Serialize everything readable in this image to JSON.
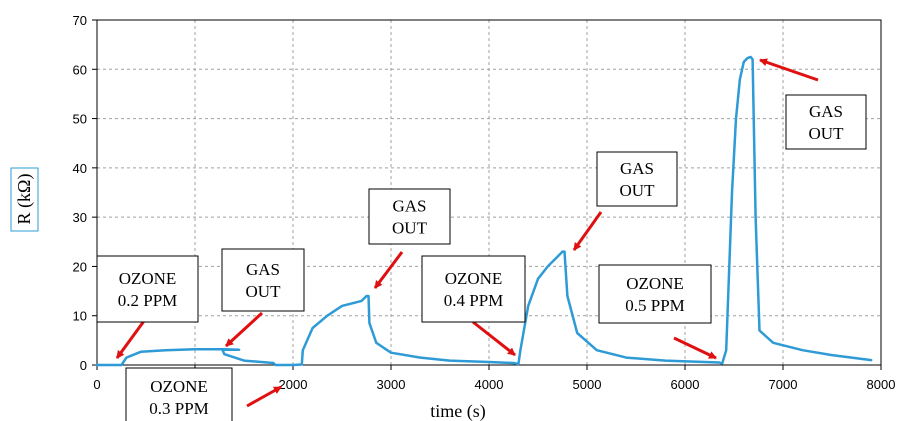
{
  "chart_data": {
    "type": "line",
    "xlabel": "time (s)",
    "ylabel": "R (kΩ)",
    "xlim": [
      0,
      8000
    ],
    "ylim": [
      0,
      70
    ],
    "xticks": [
      "0",
      "1000",
      "2000",
      "3000",
      "4000",
      "5000",
      "6000",
      "7000",
      "8000"
    ],
    "yticks": [
      "0",
      "10",
      "20",
      "30",
      "40",
      "50",
      "60",
      "70"
    ],
    "grid": true,
    "series": [
      {
        "color": "#2E9BD6",
        "x": [
          0,
          250,
          300,
          450,
          700,
          1000,
          1300,
          1450,
          1280,
          1300,
          1500,
          1800,
          1820,
          2000,
          2090,
          2100,
          2200,
          2350,
          2500,
          2700,
          2750,
          2770,
          2780,
          2850,
          3000,
          3300,
          3600,
          4000,
          4250,
          4300,
          4320,
          4400,
          4500,
          4600,
          4650,
          4700,
          4750,
          4770,
          4800,
          4900,
          5100,
          5400,
          5800,
          6200,
          6350,
          6380,
          6420,
          6480,
          6520,
          6560,
          6600,
          6640,
          6670,
          6690,
          6720,
          6760,
          6900,
          7200,
          7500,
          7900
        ],
        "y": [
          0,
          0,
          1.5,
          2.7,
          3.0,
          3.2,
          3.2,
          3.1,
          3.1,
          2.2,
          0.9,
          0.4,
          0.0,
          0.0,
          0.1,
          3.0,
          7.5,
          10.0,
          12.0,
          13.0,
          14.0,
          14.0,
          8.5,
          4.5,
          2.5,
          1.5,
          0.9,
          0.6,
          0.4,
          0.2,
          3.0,
          12.0,
          17.5,
          20.0,
          21.0,
          22.0,
          23.0,
          23.0,
          14.0,
          6.5,
          3.0,
          1.5,
          0.9,
          0.6,
          0.5,
          0.3,
          3.0,
          35.0,
          50.0,
          58.0,
          61.5,
          62.3,
          62.5,
          62.0,
          30.0,
          7.0,
          4.5,
          3.0,
          2.0,
          1.0
        ]
      }
    ],
    "annotations": [
      {
        "lines": [
          "OZONE",
          "0.2 PPM"
        ]
      },
      {
        "lines": [
          "GAS",
          "OUT"
        ]
      },
      {
        "lines": [
          "OZONE",
          "0.3 PPM"
        ]
      },
      {
        "lines": [
          "GAS",
          "OUT"
        ]
      },
      {
        "lines": [
          "OZONE",
          "0.4 PPM"
        ]
      },
      {
        "lines": [
          "GAS",
          "OUT"
        ]
      },
      {
        "lines": [
          "OZONE",
          "0.5 PPM"
        ]
      },
      {
        "lines": [
          "GAS",
          "OUT"
        ]
      }
    ],
    "arrow_color": "#E01010",
    "grid_color": "#A0A0A0"
  }
}
